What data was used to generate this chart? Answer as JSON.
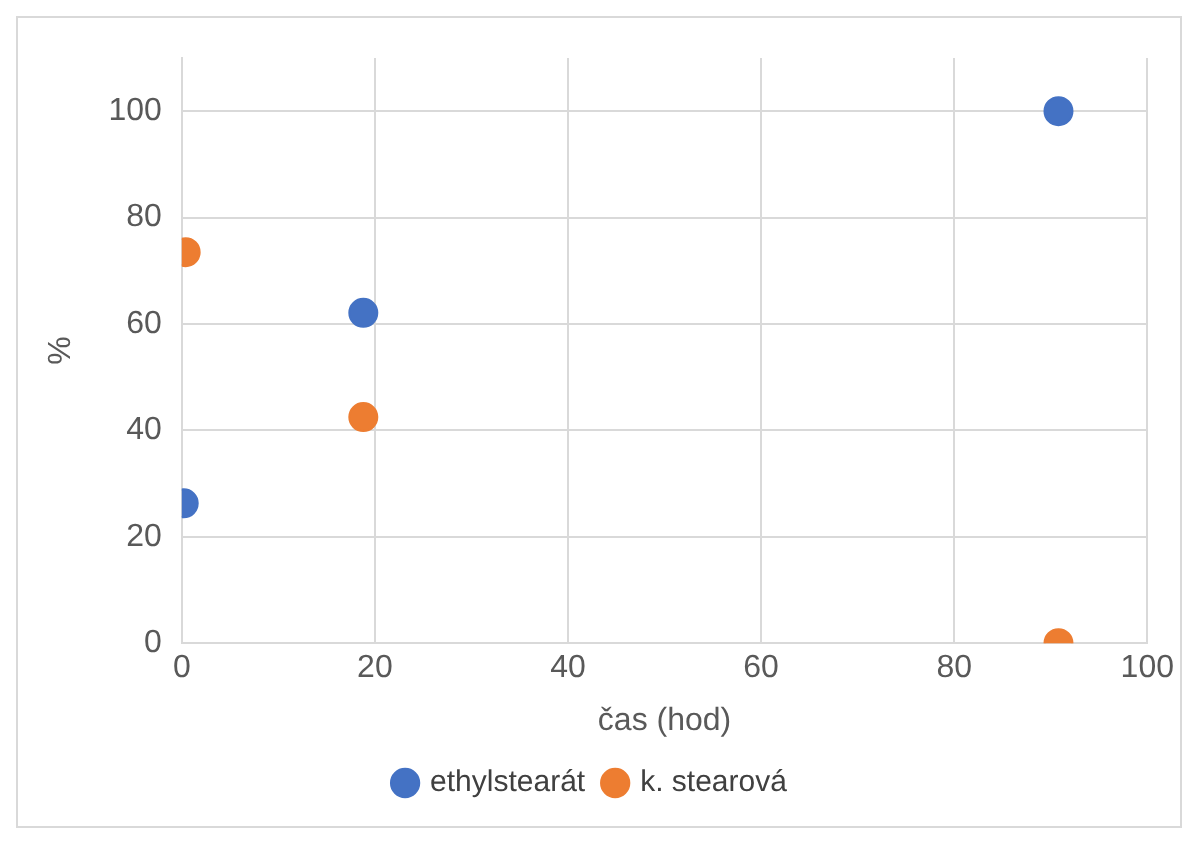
{
  "chart_data": {
    "type": "scatter",
    "xlabel": "čas (hod)",
    "ylabel": "%",
    "series": [
      {
        "name": "ethylstearát",
        "color": "#4472c4",
        "x": [
          0.2,
          18.8,
          90.8
        ],
        "values": [
          26.3,
          62.1,
          100
        ]
      },
      {
        "name": "k. stearová",
        "color": "#ed7d31",
        "x": [
          0.4,
          18.8,
          90.8
        ],
        "values": [
          73.5,
          42.5,
          0
        ]
      }
    ],
    "xlim": [
      0,
      100
    ],
    "xticks": [
      0,
      20,
      40,
      60,
      80,
      100
    ],
    "ylim": [
      0,
      110
    ],
    "yticks": [
      0,
      20,
      40,
      60,
      80,
      100
    ],
    "grid": true,
    "legend": "bottom",
    "marker": "circle"
  }
}
